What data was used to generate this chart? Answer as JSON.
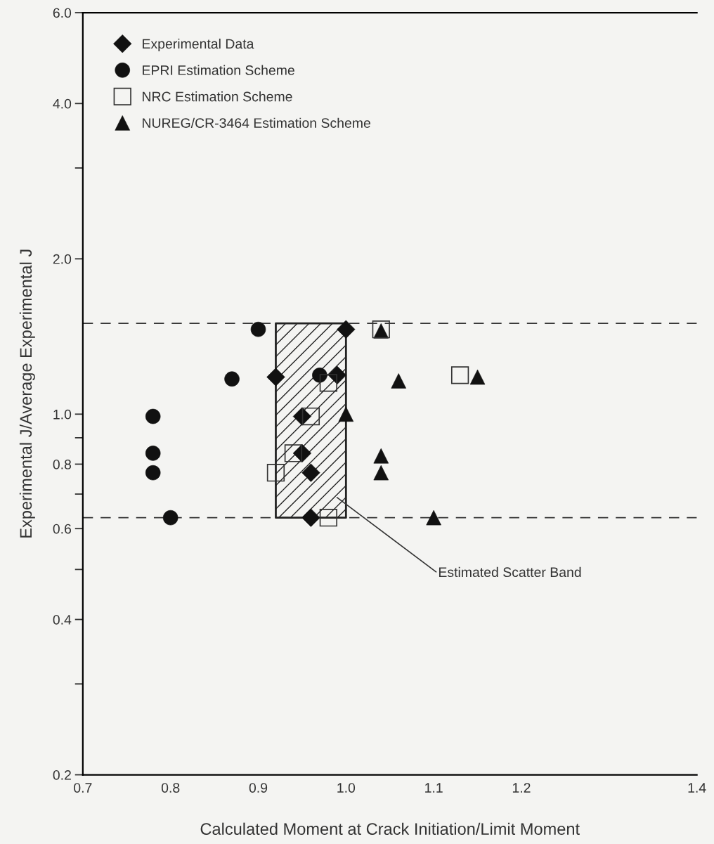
{
  "chart_data": {
    "type": "scatter",
    "xlabel": "Calculated Moment at Crack Initiation/Limit Moment",
    "ylabel": "Experimental J/Average Experimental J",
    "log": "y",
    "grid": false,
    "legend": "top left",
    "xlim": [
      0.7,
      1.4
    ],
    "xticks": [
      {
        "value": 0.7,
        "label": "0.7"
      },
      {
        "value": 0.8,
        "label": "0.8"
      },
      {
        "value": 0.9,
        "label": "0.9"
      },
      {
        "value": 1.0,
        "label": "1.0"
      },
      {
        "value": 1.1,
        "label": "1.1"
      },
      {
        "value": 1.2,
        "label": "1.2"
      },
      {
        "value": 1.4,
        "label": "1.4"
      }
    ],
    "ylim": [
      0.2,
      6.0
    ],
    "yticks": [
      {
        "value": 0.2,
        "label": "0.2"
      },
      {
        "value": 0.3,
        "label": null
      },
      {
        "value": 0.4,
        "label": "0.4"
      },
      {
        "value": 0.5,
        "label": null
      },
      {
        "value": 0.6,
        "label": "0.6"
      },
      {
        "value": 0.7,
        "label": null
      },
      {
        "value": 0.8,
        "label": "0.8"
      },
      {
        "value": 0.9,
        "label": null
      },
      {
        "value": 1.0,
        "label": "1.0"
      },
      {
        "value": 2.0,
        "label": "2.0"
      },
      {
        "value": 3.0,
        "label": null
      },
      {
        "value": 4.0,
        "label": "4.0"
      },
      {
        "value": 6.0,
        "label": "6.0"
      }
    ],
    "series": [
      {
        "name": "Experimental Data",
        "color": "#111111",
        "marker": "diamond",
        "x": [
          1.0,
          0.92,
          0.99,
          0.95,
          0.95,
          0.96,
          0.96
        ],
        "values": [
          1.46,
          1.18,
          1.19,
          0.99,
          0.84,
          0.77,
          0.63
        ]
      },
      {
        "name": "EPRI Estimation Scheme",
        "color": "#111111",
        "marker": "circle",
        "x": [
          0.78,
          0.78,
          0.78,
          0.8,
          0.87,
          0.9,
          0.97
        ],
        "values": [
          0.99,
          0.84,
          0.77,
          0.63,
          1.17,
          1.46,
          1.19
        ]
      },
      {
        "name": "NRC Estimation Scheme",
        "color": "#333333",
        "marker": "square",
        "x": [
          0.98,
          0.96,
          0.94,
          0.92,
          0.98,
          1.04,
          1.13
        ],
        "values": [
          1.15,
          0.99,
          0.84,
          0.77,
          0.63,
          1.46,
          1.19
        ]
      },
      {
        "name": "NUREG/CR-3464 Estimation Scheme",
        "color": "#111111",
        "marker": "triangle",
        "x": [
          1.0,
          1.04,
          1.06,
          1.15,
          1.04,
          1.04,
          1.1
        ],
        "values": [
          1.0,
          1.45,
          1.16,
          1.18,
          0.83,
          0.77,
          0.63
        ]
      }
    ],
    "ref_lines": [
      {
        "axis": "y",
        "value": 1.5,
        "line_style": "dashed",
        "color": "#333333"
      },
      {
        "axis": "y",
        "value": 0.63,
        "line_style": "dashed",
        "color": "#333333"
      }
    ],
    "bands": [
      {
        "axis": "x",
        "from": 0.92,
        "to": 1.0,
        "label": "Estimated Scatter Band",
        "color": "#222222"
      }
    ]
  }
}
